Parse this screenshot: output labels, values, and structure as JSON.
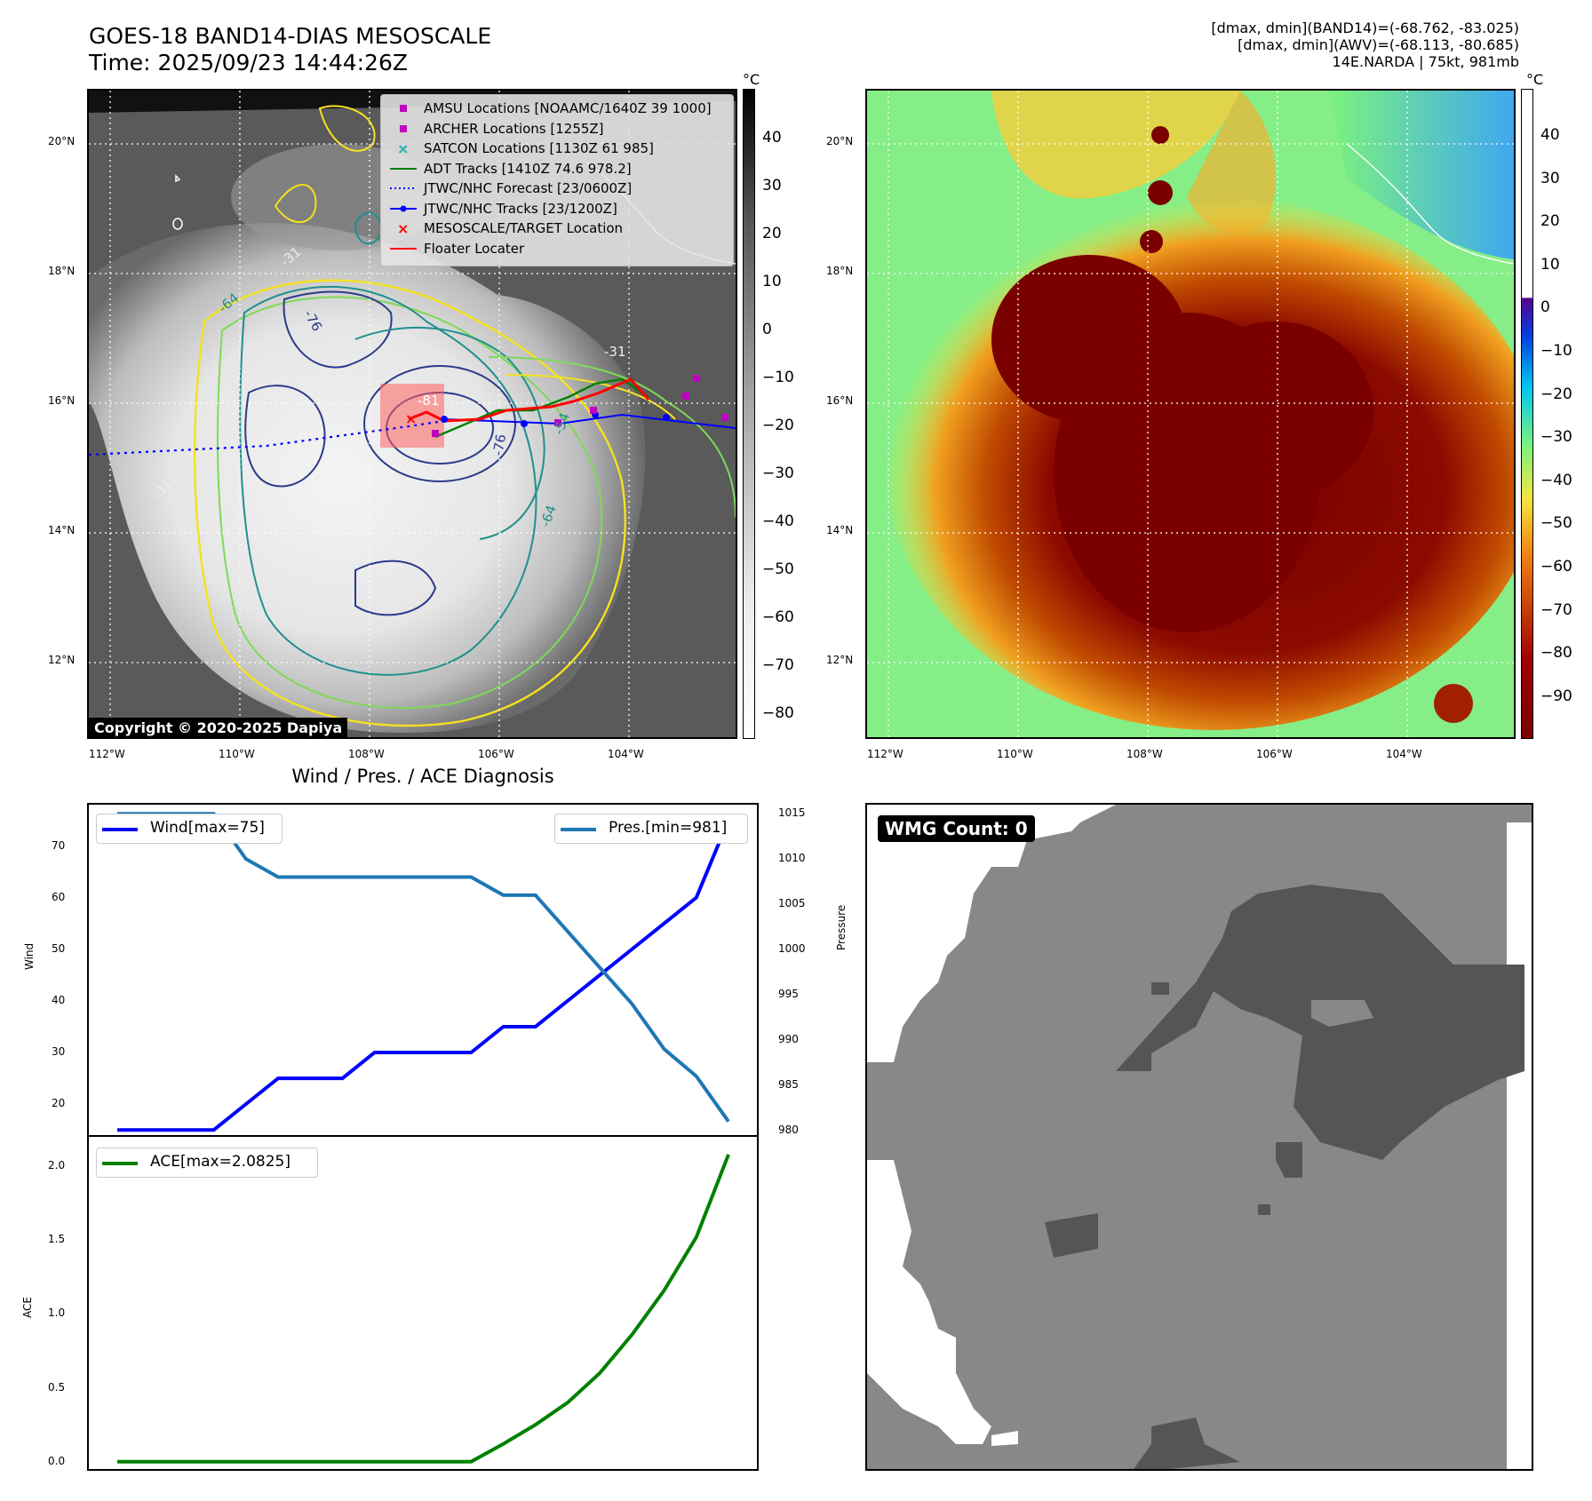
{
  "header": {
    "title_line1": "GOES-18 BAND14-DIAS MESOSCALE",
    "title_line2": "Time: 2025/09/23 14:44:26Z",
    "info_line1": "[dmax, dmin](BAND14)=(-68.762, -83.025)",
    "info_line2": "[dmax, dmin](AWV)=(-68.113, -80.685)",
    "info_line3": "14E.NARDA | 75kt, 981mb"
  },
  "map_axes": {
    "lat_labels": [
      "20°N",
      "18°N",
      "16°N",
      "14°N",
      "12°N"
    ],
    "lon_labels": [
      "112°W",
      "110°W",
      "108°W",
      "106°W",
      "104°W"
    ]
  },
  "colorbar_left": {
    "unit": "°C",
    "ticks": [
      "40",
      "30",
      "20",
      "10",
      "0",
      "−10",
      "−20",
      "−30",
      "−40",
      "−50",
      "−60",
      "−70",
      "−80"
    ]
  },
  "colorbar_right": {
    "unit": "°C",
    "ticks": [
      "40",
      "30",
      "20",
      "10",
      "0",
      "−10",
      "−20",
      "−30",
      "−40",
      "−50",
      "−60",
      "−70",
      "−80",
      "−90"
    ]
  },
  "legend": [
    {
      "label": "AMSU Locations [NOAAMC/1640Z 39 1000]",
      "color": "#c000c0",
      "symbol": "square"
    },
    {
      "label": "ARCHER Locations [1255Z]",
      "color": "#c000c0",
      "symbol": "square"
    },
    {
      "label": "SATCON Locations [1130Z 61 985]",
      "color": "#20b2aa",
      "symbol": "x"
    },
    {
      "label": "ADT Tracks [1410Z 74.6 978.2]",
      "color": "#008000",
      "symbol": "line"
    },
    {
      "label": "JTWC/NHC Forecast [23/0600Z]",
      "color": "#0000ff",
      "symbol": "dotted"
    },
    {
      "label": "JTWC/NHC Tracks [23/1200Z]",
      "color": "#0000ff",
      "symbol": "line-dot"
    },
    {
      "label": "MESOSCALE/TARGET Location",
      "color": "#ff0000",
      "symbol": "x"
    },
    {
      "label": "Floater Locater",
      "color": "#ff0000",
      "symbol": "line"
    }
  ],
  "contour_labels": [
    "-31",
    "-64",
    "-76",
    "-31",
    "-31",
    "-76",
    "-64",
    "-54",
    "-81"
  ],
  "copyright": "Copyright © 2020-2025 Dapiya",
  "wmg": {
    "label": "WMG Count: 0"
  },
  "chart_data": [
    {
      "type": "line",
      "title": "Wind / Pres. / ACE Diagnosis",
      "x": [
        0,
        1,
        2,
        3,
        4,
        5,
        6,
        7,
        8,
        9,
        10,
        11,
        12,
        13,
        14,
        15,
        16,
        17,
        18,
        19
      ],
      "ylabel": "Wind",
      "y2label": "Pressure",
      "ylim": [
        14,
        78
      ],
      "y2lim": [
        979.5,
        1016
      ],
      "yticks": [
        20,
        30,
        40,
        50,
        60,
        70
      ],
      "y2ticks": [
        980,
        985,
        990,
        995,
        1000,
        1005,
        1010,
        1015
      ],
      "series": [
        {
          "name": "Wind[max=75]",
          "axis": "left",
          "color": "#0000ff",
          "values": [
            15,
            15,
            15,
            15,
            20,
            25,
            25,
            25,
            30,
            30,
            30,
            30,
            35,
            35,
            40,
            45,
            50,
            55,
            60,
            75
          ]
        },
        {
          "name": "Pres.[min=981]",
          "axis": "right",
          "color": "#1f77b4",
          "values": [
            1015,
            1015,
            1015,
            1015,
            1010,
            1008,
            1008,
            1008,
            1008,
            1008,
            1008,
            1008,
            1006,
            1006,
            1002,
            998,
            994,
            989,
            986,
            981
          ]
        }
      ]
    },
    {
      "type": "line",
      "x": [
        0,
        1,
        2,
        3,
        4,
        5,
        6,
        7,
        8,
        9,
        10,
        11,
        12,
        13,
        14,
        15,
        16,
        17,
        18,
        19
      ],
      "ylabel": "ACE",
      "ylim": [
        -0.05,
        2.2
      ],
      "yticks": [
        0.0,
        0.5,
        1.0,
        1.5,
        2.0
      ],
      "ytick_labels": [
        "0.0",
        "0.5",
        "1.0",
        "1.5",
        "2.0"
      ],
      "series": [
        {
          "name": "ACE[max=2.0825]",
          "color": "#008000",
          "values": [
            0,
            0,
            0,
            0,
            0,
            0,
            0,
            0,
            0,
            0,
            0,
            0,
            0.12,
            0.25,
            0.4,
            0.6,
            0.86,
            1.16,
            1.52,
            2.08
          ]
        }
      ]
    }
  ]
}
